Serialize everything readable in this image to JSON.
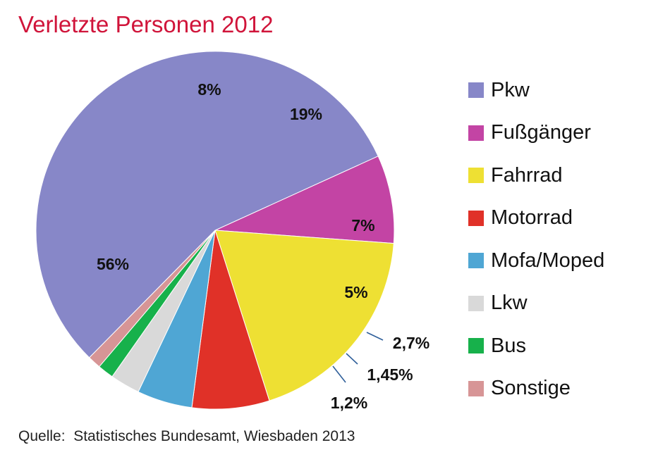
{
  "chart_data": {
    "type": "pie",
    "title": "Verletzte Personen 2012",
    "source": "Quelle:  Statistisches Bundesamt, Wiesbaden 2013",
    "legend_position": "right",
    "slices": [
      {
        "name": "Pkw",
        "value": 56,
        "label": "56%",
        "color": "#8787c8"
      },
      {
        "name": "Fußgänger",
        "value": 8,
        "label": "8%",
        "color": "#c344a4"
      },
      {
        "name": "Fahrrad",
        "value": 19,
        "label": "19%",
        "color": "#eee033"
      },
      {
        "name": "Motorrad",
        "value": 7,
        "label": "7%",
        "color": "#e03128"
      },
      {
        "name": "Mofa/Moped",
        "value": 5,
        "label": "5%",
        "color": "#4fa6d4"
      },
      {
        "name": "Lkw",
        "value": 2.7,
        "label": "2,7%",
        "color": "#d9d9d9"
      },
      {
        "name": "Bus",
        "value": 1.45,
        "label": "1,45%",
        "color": "#17b14b"
      },
      {
        "name": "Sonstige",
        "value": 1.2,
        "label": "1,2%",
        "color": "#d79596"
      }
    ]
  }
}
